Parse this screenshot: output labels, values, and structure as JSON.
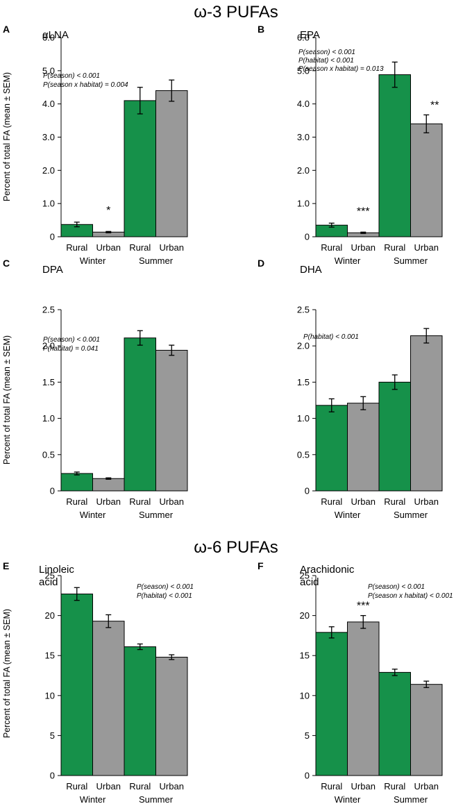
{
  "sections": [
    "ω-3 PUFAs",
    "ω-6 PUFAs"
  ],
  "colors": {
    "rural": "#16914a",
    "urban": "#999999",
    "axis": "#000000"
  },
  "chart_data": [
    {
      "panel": "A",
      "type": "bar",
      "title": "αLNA",
      "ylabel": "Percent of total FA (mean ± SEM)",
      "ylim": [
        0,
        6
      ],
      "yticks": [
        "0",
        "1.0",
        "2.0",
        "3.0",
        "4.0",
        "5.0",
        "6.0"
      ],
      "categories": [
        "Rural",
        "Urban",
        "Rural",
        "Urban"
      ],
      "groups": [
        "Winter",
        "Summer"
      ],
      "values": [
        0.37,
        0.14,
        4.1,
        4.4
      ],
      "errors": [
        0.07,
        0.02,
        0.4,
        0.32
      ],
      "stats": [
        "P(season) < 0.001",
        "P(season x habitat) = 0.004"
      ],
      "significance": [
        {
          "bar": 1,
          "label": "*"
        }
      ]
    },
    {
      "panel": "B",
      "type": "bar",
      "title": "EPA",
      "ylabel": "",
      "ylim": [
        0,
        6
      ],
      "yticks": [
        "0",
        "1.0",
        "2.0",
        "3.0",
        "4.0",
        "5.0",
        "6.0"
      ],
      "categories": [
        "Rural",
        "Urban",
        "Rural",
        "Urban"
      ],
      "groups": [
        "Winter",
        "Summer"
      ],
      "values": [
        0.35,
        0.12,
        4.88,
        3.4
      ],
      "errors": [
        0.06,
        0.02,
        0.38,
        0.27
      ],
      "stats": [
        "P(season) < 0.001",
        "P(habitat) < 0.001",
        "P(season x habitat) = 0.013"
      ],
      "significance": [
        {
          "bar": 1,
          "label": "***"
        },
        {
          "bar": 3,
          "label": "**"
        }
      ]
    },
    {
      "panel": "C",
      "type": "bar",
      "title": "DPA",
      "ylabel": "Percent of total FA (mean ± SEM)",
      "ylim": [
        0,
        2.5
      ],
      "yticks": [
        "0",
        "0.5",
        "1.0",
        "1.5",
        "2.0",
        "2.5"
      ],
      "categories": [
        "Rural",
        "Urban",
        "Rural",
        "Urban"
      ],
      "groups": [
        "Winter",
        "Summer"
      ],
      "values": [
        0.24,
        0.17,
        2.11,
        1.94
      ],
      "errors": [
        0.02,
        0.01,
        0.1,
        0.07
      ],
      "stats": [
        "P(season) < 0.001",
        "P(habitat) = 0.041"
      ],
      "significance": []
    },
    {
      "panel": "D",
      "type": "bar",
      "title": "DHA",
      "ylabel": "",
      "ylim": [
        0,
        2.5
      ],
      "yticks": [
        "0",
        "0.5",
        "1.0",
        "1.5",
        "2.0",
        "2.5"
      ],
      "categories": [
        "Rural",
        "Urban",
        "Rural",
        "Urban"
      ],
      "groups": [
        "Winter",
        "Summer"
      ],
      "values": [
        1.18,
        1.21,
        1.5,
        2.14
      ],
      "errors": [
        0.09,
        0.09,
        0.1,
        0.1
      ],
      "stats": [
        "P(habitat) < 0.001"
      ],
      "significance": []
    },
    {
      "panel": "E",
      "type": "bar",
      "title": "Linoleic acid",
      "ylabel": "Percent of total FA (mean ± SEM)",
      "ylim": [
        0,
        25
      ],
      "yticks": [
        "0",
        "5",
        "10",
        "15",
        "20",
        "25"
      ],
      "categories": [
        "Rural",
        "Urban",
        "Rural",
        "Urban"
      ],
      "groups": [
        "Winter",
        "Summer"
      ],
      "values": [
        22.7,
        19.3,
        16.1,
        14.8
      ],
      "errors": [
        0.8,
        0.8,
        0.35,
        0.3
      ],
      "stats": [
        "P(season) < 0.001",
        "P(habitat) < 0.001"
      ],
      "significance": []
    },
    {
      "panel": "F",
      "type": "bar",
      "title": "Arachidonic acid",
      "ylabel": "",
      "ylim": [
        0,
        25
      ],
      "yticks": [
        "0",
        "5",
        "10",
        "15",
        "20",
        "25"
      ],
      "categories": [
        "Rural",
        "Urban",
        "Rural",
        "Urban"
      ],
      "groups": [
        "Winter",
        "Summer"
      ],
      "values": [
        17.9,
        19.2,
        12.9,
        11.4
      ],
      "errors": [
        0.7,
        0.8,
        0.4,
        0.4
      ],
      "stats": [
        "P(season) < 0.001",
        "P(season x habitat) < 0.001"
      ],
      "significance": [
        {
          "bar": 1,
          "label": "***"
        }
      ]
    }
  ]
}
